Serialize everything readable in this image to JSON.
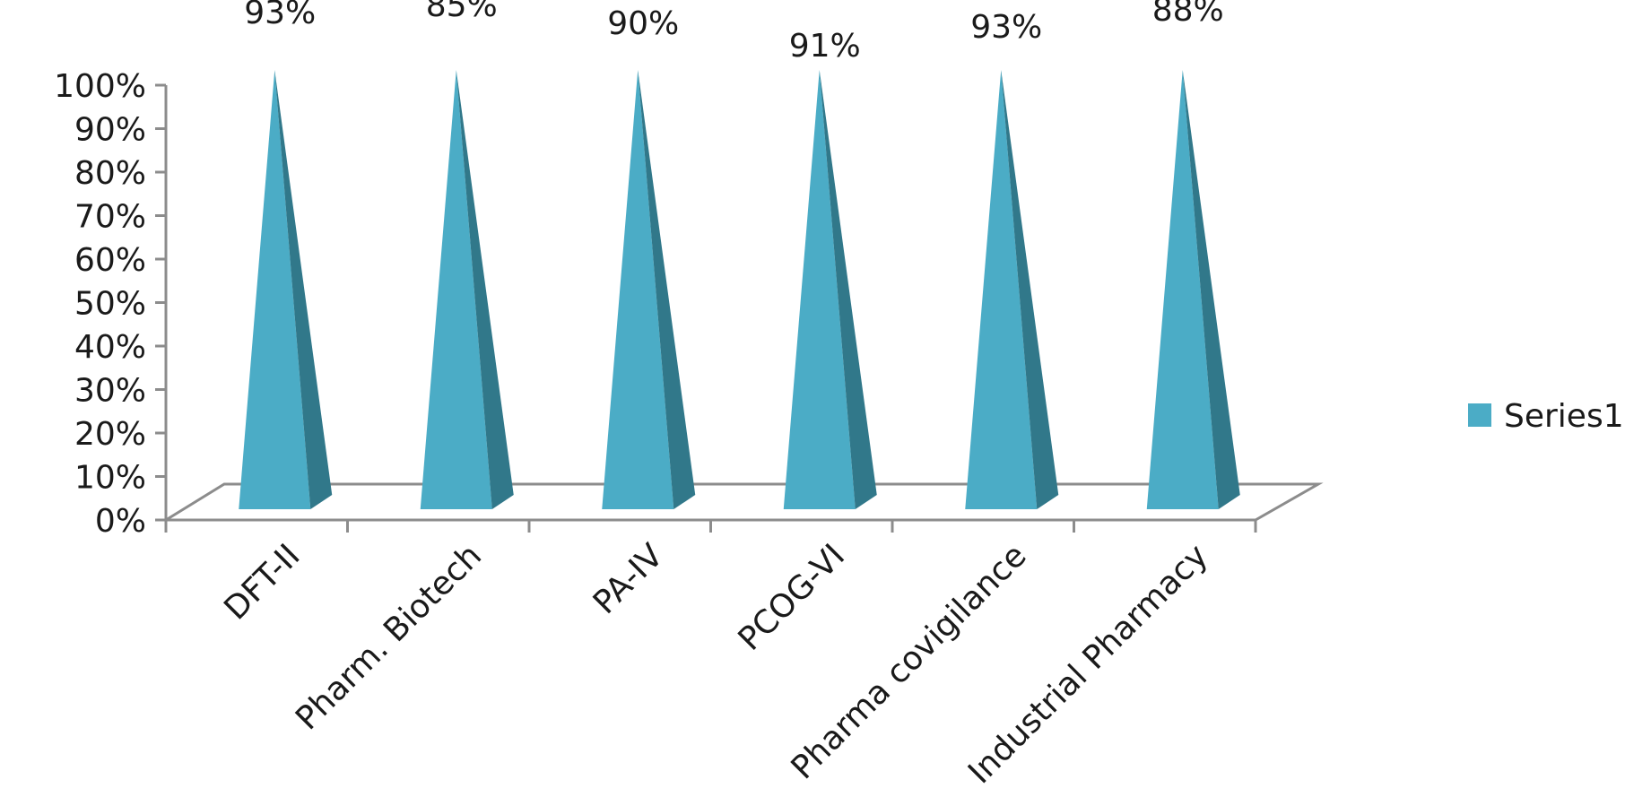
{
  "chart_data": {
    "type": "bar",
    "categories": [
      "DFT-II",
      "Pharm. Biotech",
      "PA-IV",
      "PCOG-VI",
      "Pharma covigilance",
      "Industrial Pharmacy"
    ],
    "series": [
      {
        "name": "Series1",
        "values": [
          93,
          85,
          90,
          91,
          93,
          88
        ],
        "data_labels": [
          "93%",
          "85%",
          "90%",
          "91%",
          "93%",
          "88%"
        ]
      }
    ],
    "y_ticks": [
      "0%",
      "10%",
      "20%",
      "30%",
      "40%",
      "50%",
      "60%",
      "70%",
      "80%",
      "90%",
      "100%"
    ],
    "ylim": [
      0,
      100
    ],
    "grid": false,
    "legend_position": "right",
    "bar_shape": "3d-pyramid",
    "colors": {
      "bar_front": "#4bacc6",
      "bar_side": "#31788a",
      "axis": "#8c8c8c"
    }
  }
}
